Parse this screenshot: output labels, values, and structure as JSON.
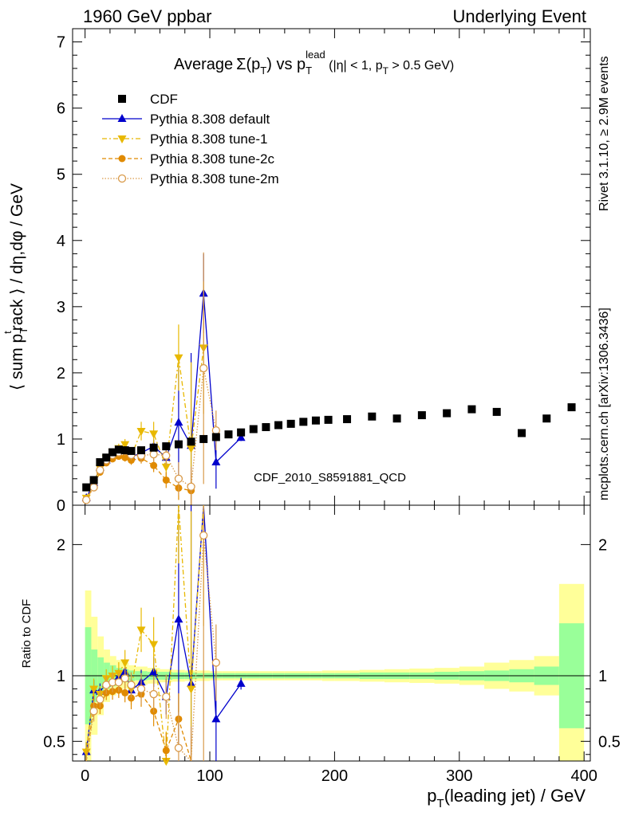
{
  "header": {
    "left": "1960 GeV ppbar",
    "right": "Underlying Event"
  },
  "side_labels": {
    "rivet": "Rivet 3.1.10, ≥ 2.9M events",
    "mcplots": "mcplots.cern.ch [arXiv:1306.3436]"
  },
  "chart_data": {
    "type": "scatter",
    "title": {
      "prefix": "Average",
      "sigma": "Σ(p",
      "sigma_sub": "T",
      "vs": ") vs p",
      "vs_sub": "T",
      "vs_sup": "lead",
      "cuts_a": " (|η| < 1, p",
      "cuts_sub": "T",
      "cuts_b": " > 0.5 GeV)"
    },
    "watermark": "CDF_2010_S8591881_QCD",
    "xlabel": {
      "main": "p",
      "sub": "T",
      "rest": "(leading jet) / GeV"
    },
    "ylabel_main": {
      "a": "⟨ sum p",
      "sub": "T",
      "sup": "t",
      "b": "rack ⟩ / dη,dφ / GeV"
    },
    "ylabel_ratio": "Ratio to CDF",
    "xlim": [
      -10,
      405
    ],
    "xticks": [
      0,
      100,
      200,
      300,
      400
    ],
    "main_ylim": [
      0,
      7.2
    ],
    "main_yticks": [
      0,
      1,
      2,
      3,
      4,
      5,
      6,
      7
    ],
    "ratio_ylim": [
      0.35,
      2.3
    ],
    "ratio_yticks": [
      0.5,
      1,
      2
    ],
    "legend_position": "top-left",
    "legend": [
      {
        "key": "cdf",
        "label": "CDF"
      },
      {
        "key": "default",
        "label": "Pythia 8.308 default"
      },
      {
        "key": "tune1",
        "label": "Pythia 8.308 tune-1"
      },
      {
        "key": "tune2c",
        "label": "Pythia 8.308 tune-2c"
      },
      {
        "key": "tune2m",
        "label": "Pythia 8.308 tune-2m"
      }
    ],
    "cdf": {
      "x": [
        1,
        7,
        12,
        17,
        22,
        27,
        32,
        37,
        45,
        55,
        65,
        75,
        85,
        95,
        105,
        115,
        125,
        135,
        145,
        155,
        165,
        175,
        185,
        195,
        210,
        230,
        250,
        270,
        290,
        310,
        330,
        350,
        370,
        390
      ],
      "y": [
        0.27,
        0.38,
        0.65,
        0.72,
        0.8,
        0.84,
        0.83,
        0.82,
        0.83,
        0.87,
        0.89,
        0.92,
        0.96,
        1.0,
        1.03,
        1.07,
        1.1,
        1.15,
        1.18,
        1.21,
        1.23,
        1.26,
        1.28,
        1.29,
        1.3,
        1.34,
        1.31,
        1.36,
        1.39,
        1.45,
        1.41,
        1.09,
        1.31,
        1.48
      ]
    },
    "series": [
      {
        "name": "Pythia 8.308 default",
        "key": "default",
        "color": "#0000cc",
        "marker": "triangle-up",
        "x": [
          1,
          7,
          12,
          17,
          22,
          27,
          32,
          37,
          45,
          55,
          65,
          75,
          85,
          95,
          105,
          125
        ],
        "y": [
          0.11,
          0.34,
          0.57,
          0.68,
          0.77,
          0.83,
          0.85,
          0.73,
          0.79,
          0.89,
          0.72,
          1.25,
          0.9,
          3.2,
          0.65,
          1.02
        ],
        "yerr": [
          0.02,
          0.03,
          0.04,
          0.04,
          0.05,
          0.05,
          0.06,
          0.07,
          0.08,
          0.1,
          0.12,
          0.9,
          1.4,
          0.6,
          0.4,
          0.05
        ],
        "ratio": [
          0.42,
          0.89,
          0.88,
          0.94,
          0.96,
          0.99,
          1.03,
          0.89,
          0.95,
          1.03,
          0.84,
          1.43,
          0.94,
          3.2,
          0.67,
          0.94
        ]
      },
      {
        "name": "Pythia 8.308 tune-1",
        "key": "tune1",
        "color": "#e8b800",
        "marker": "triangle-down",
        "x": [
          1,
          7,
          12,
          17,
          22,
          27,
          32,
          37,
          45,
          55,
          65,
          75,
          85,
          95
        ],
        "y": [
          0.11,
          0.34,
          0.56,
          0.71,
          0.8,
          0.86,
          0.92,
          0.74,
          1.12,
          1.08,
          0.58,
          2.23,
          0.86,
          2.38
        ],
        "yerr": [
          0.02,
          0.03,
          0.04,
          0.05,
          0.06,
          0.07,
          0.08,
          0.1,
          0.14,
          0.18,
          0.2,
          0.5,
          1.3,
          1.0
        ],
        "ratio": [
          0.42,
          0.9,
          0.86,
          0.98,
          1.0,
          1.02,
          1.1,
          0.9,
          1.35,
          1.24,
          0.35,
          2.4,
          0.9,
          2.38
        ]
      },
      {
        "name": "Pythia 8.308 tune-2c",
        "key": "tune2c",
        "color": "#e08a00",
        "marker": "circle",
        "x": [
          1,
          7,
          12,
          17,
          22,
          27,
          32,
          37,
          45,
          55,
          65,
          75,
          85
        ],
        "y": [
          0.08,
          0.29,
          0.5,
          0.64,
          0.7,
          0.74,
          0.72,
          0.68,
          0.71,
          0.6,
          0.38,
          0.26,
          0.22
        ],
        "yerr": [
          0.02,
          0.03,
          0.04,
          0.04,
          0.05,
          0.05,
          0.06,
          0.07,
          0.08,
          0.1,
          0.12,
          0.18,
          0.25
        ],
        "ratio": [
          0.3,
          0.77,
          0.77,
          0.87,
          0.88,
          0.89,
          0.87,
          0.83,
          0.86,
          0.73,
          0.43,
          0.67,
          0.25
        ]
      },
      {
        "name": "Pythia 8.308 tune-2m",
        "key": "tune2m",
        "color": "#d99a4a",
        "marker": "circle-open",
        "x": [
          1,
          7,
          12,
          17,
          22,
          27,
          32,
          37,
          45,
          55,
          65,
          75,
          85,
          95,
          105
        ],
        "y": [
          0.08,
          0.27,
          0.53,
          0.68,
          0.76,
          0.8,
          0.82,
          0.76,
          0.75,
          0.77,
          0.75,
          0.4,
          0.28,
          2.07,
          1.13
        ],
        "yerr": [
          0.02,
          0.03,
          0.04,
          0.05,
          0.06,
          0.06,
          0.07,
          0.08,
          0.1,
          0.12,
          0.15,
          0.25,
          0.3,
          1.75,
          0.3
        ],
        "ratio": [
          0.3,
          0.73,
          0.82,
          0.93,
          0.95,
          0.95,
          0.98,
          0.93,
          0.9,
          0.86,
          0.84,
          0.45,
          0.3,
          2.07,
          1.1
        ]
      }
    ],
    "bands": {
      "edges": [
        0,
        5,
        10,
        15,
        20,
        25,
        30,
        35,
        40,
        50,
        60,
        70,
        80,
        90,
        100,
        110,
        120,
        130,
        140,
        150,
        160,
        170,
        180,
        190,
        200,
        220,
        240,
        260,
        280,
        300,
        320,
        340,
        360,
        380,
        400
      ],
      "green": [
        0.37,
        0.2,
        0.14,
        0.1,
        0.08,
        0.06,
        0.05,
        0.04,
        0.035,
        0.03,
        0.03,
        0.025,
        0.025,
        0.02,
        0.02,
        0.02,
        0.02,
        0.02,
        0.02,
        0.02,
        0.02,
        0.02,
        0.02,
        0.02,
        0.02,
        0.025,
        0.025,
        0.025,
        0.03,
        0.035,
        0.04,
        0.05,
        0.07,
        0.4
      ],
      "yellow": [
        0.65,
        0.45,
        0.3,
        0.2,
        0.15,
        0.12,
        0.1,
        0.08,
        0.07,
        0.06,
        0.05,
        0.045,
        0.04,
        0.04,
        0.035,
        0.035,
        0.035,
        0.035,
        0.035,
        0.035,
        0.035,
        0.035,
        0.035,
        0.04,
        0.04,
        0.045,
        0.05,
        0.055,
        0.06,
        0.07,
        0.1,
        0.12,
        0.15,
        0.7
      ],
      "green_color": "#99ff99",
      "yellow_color": "#ffff99"
    }
  }
}
